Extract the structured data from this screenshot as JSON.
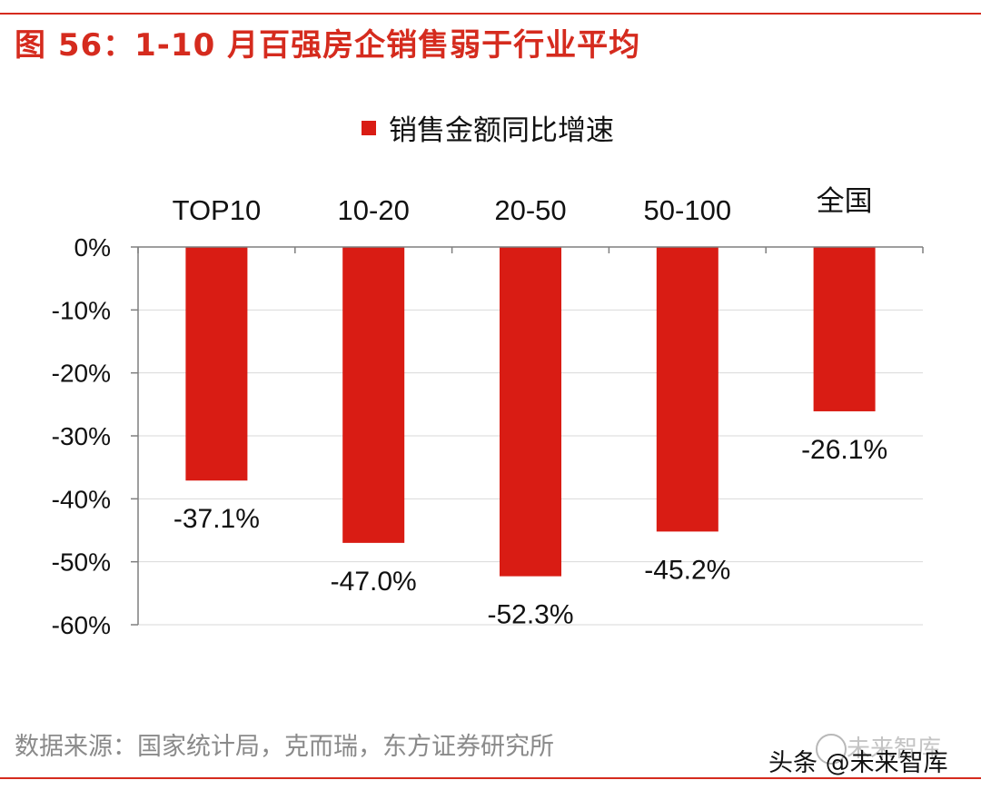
{
  "colors": {
    "accent": "#d52b1e",
    "bar": "#d91c14",
    "grid": "#d9d9d9",
    "axis": "#7f7f7f",
    "source_text": "#8a8a8a"
  },
  "title": "图 56：1-10 月百强房企销售弱于行业平均",
  "source": "数据来源：国家统计局，克而瑞，东方证券研究所",
  "watermark": {
    "main": "头条 @未来智库",
    "faint": "未来智库",
    "icon": "wechat-circle-icon"
  },
  "chart_data": {
    "type": "bar",
    "title": "图 56：1-10 月百强房企销售弱于行业平均",
    "legend": [
      "销售金额同比增速"
    ],
    "legend_position": "top-center",
    "category_axis_position": "top",
    "categories": [
      "TOP10",
      "10-20",
      "20-50",
      "50-100",
      "全国"
    ],
    "series": [
      {
        "name": "销售金额同比增速",
        "values": [
          -37.1,
          -47.0,
          -52.3,
          -45.2,
          -26.1
        ]
      }
    ],
    "data_labels": [
      "-37.1%",
      "-47.0%",
      "-52.3%",
      "-45.2%",
      "-26.1%"
    ],
    "y_ticks": [
      0,
      -10,
      -20,
      -30,
      -40,
      -50,
      -60
    ],
    "y_tick_labels": [
      "0%",
      "-10%",
      "-20%",
      "-30%",
      "-40%",
      "-50%",
      "-60%"
    ],
    "ylim": [
      -60,
      0
    ],
    "grid": true,
    "xlabel": "",
    "ylabel": ""
  }
}
